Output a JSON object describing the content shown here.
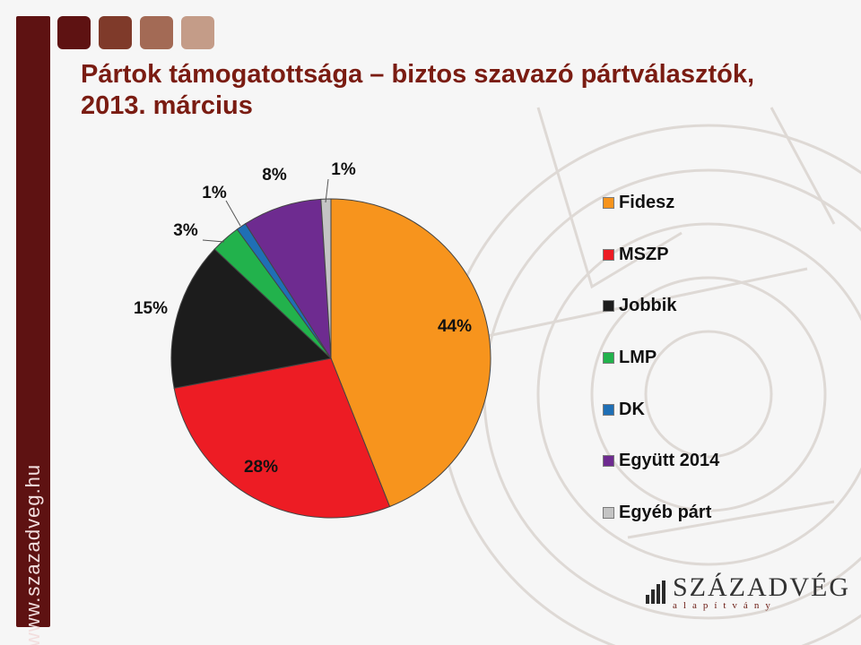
{
  "slide": {
    "title_line1": "Pártok támogatottsága – biztos szavazó pártválasztók,",
    "title_line2": "2013. március",
    "side_url": "www.szazadveg.hu",
    "logo_main": "SZÁZADVÉG",
    "logo_sub": "alapítvány",
    "square_colors": [
      "#5e1212",
      "#7f3a2a",
      "#a36a55",
      "#c49c88"
    ],
    "accent_color": "#5e1212"
  },
  "chart_data": {
    "type": "pie",
    "title": "",
    "legend_position": "right",
    "labels": [
      "Fidesz",
      "MSZP",
      "Jobbik",
      "LMP",
      "DK",
      "Együtt 2014",
      "Egyéb párt"
    ],
    "values": [
      44,
      28,
      15,
      3,
      1,
      8,
      1
    ],
    "data_labels": [
      "44%",
      "28%",
      "15%",
      "3%",
      "1%",
      "8%",
      "1%"
    ],
    "colors": [
      "#f7941d",
      "#ed1c24",
      "#1c1c1c",
      "#22b24c",
      "#1f6fb5",
      "#6e2b90",
      "#c4c4c4"
    ]
  }
}
